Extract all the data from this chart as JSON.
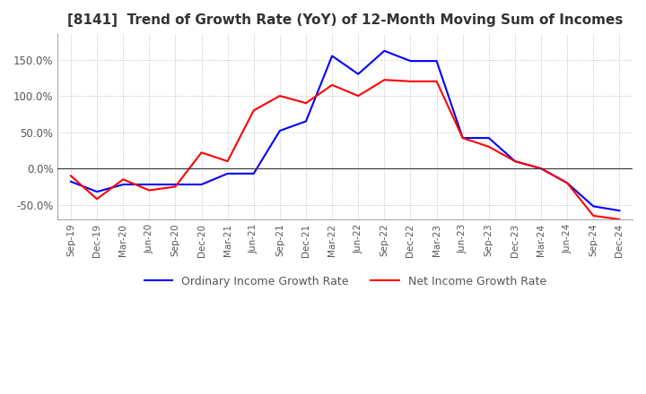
{
  "title": "[8141]  Trend of Growth Rate (YoY) of 12-Month Moving Sum of Incomes",
  "title_fontsize": 11,
  "background_color": "#ffffff",
  "plot_bg_color": "#ffffff",
  "grid_color": "#bbbbbb",
  "ordinary_color": "#0000ff",
  "net_color": "#ff0000",
  "legend_labels": [
    "Ordinary Income Growth Rate",
    "Net Income Growth Rate"
  ],
  "x_labels": [
    "Sep-19",
    "Dec-19",
    "Mar-20",
    "Jun-20",
    "Sep-20",
    "Dec-20",
    "Mar-21",
    "Jun-21",
    "Sep-21",
    "Dec-21",
    "Mar-22",
    "Jun-22",
    "Sep-22",
    "Dec-22",
    "Mar-23",
    "Jun-23",
    "Sep-23",
    "Dec-23",
    "Mar-24",
    "Jun-24",
    "Sep-24",
    "Dec-24"
  ],
  "ordinary_data": [
    -0.18,
    -0.32,
    -0.22,
    -0.22,
    -0.22,
    -0.22,
    -0.07,
    -0.07,
    0.52,
    0.65,
    1.55,
    1.3,
    1.62,
    1.48,
    1.48,
    0.42,
    0.42,
    0.1,
    0.0,
    -0.2,
    -0.52,
    -0.58
  ],
  "net_data": [
    -0.1,
    -0.42,
    -0.15,
    -0.3,
    -0.25,
    0.22,
    0.1,
    0.8,
    1.0,
    0.9,
    1.15,
    1.0,
    1.22,
    1.2,
    1.2,
    0.42,
    0.3,
    0.1,
    0.0,
    -0.2,
    -0.65,
    -0.7
  ],
  "ylim": [
    -0.7,
    1.85
  ],
  "yticks": [
    -0.5,
    0.0,
    0.5,
    1.0,
    1.5
  ],
  "ytick_labels": [
    "-50.0%",
    "0.0%",
    "50.0%",
    "100.0%",
    "150.0%"
  ]
}
